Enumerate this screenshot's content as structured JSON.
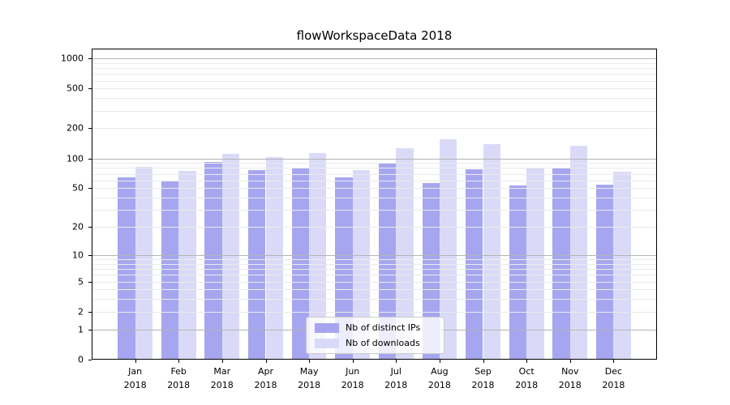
{
  "title": "flowWorkspaceData 2018",
  "chart_data": {
    "type": "bar",
    "title": "flowWorkspaceData 2018",
    "x_categories_month": [
      "Jan",
      "Feb",
      "Mar",
      "Apr",
      "May",
      "Jun",
      "Jul",
      "Aug",
      "Sep",
      "Oct",
      "Nov",
      "Dec"
    ],
    "x_categories_year": "2018",
    "series": [
      {
        "name": "Nb of distinct IPs",
        "color": "#a6a6f0",
        "values": [
          64,
          60,
          92,
          76,
          80,
          64,
          88,
          56,
          77,
          53,
          79,
          54
        ]
      },
      {
        "name": "Nb of downloads",
        "color": "#dadaf8",
        "values": [
          82,
          75,
          112,
          102,
          114,
          76,
          127,
          154,
          138,
          80,
          133,
          73
        ]
      }
    ],
    "y_ticks": [
      0,
      1,
      2,
      5,
      10,
      20,
      50,
      100,
      200,
      500,
      1000
    ],
    "y_major_gridlines": [
      1,
      10,
      100,
      1000
    ],
    "scale": "log10(value+1)",
    "ylim": [
      0,
      1250
    ],
    "grid": true,
    "legend_position": "lower center",
    "colors": {
      "major_grid": "#b4b4b4",
      "minor_grid": "#eaeaea",
      "axis": "#000000",
      "background": "#ffffff"
    }
  }
}
